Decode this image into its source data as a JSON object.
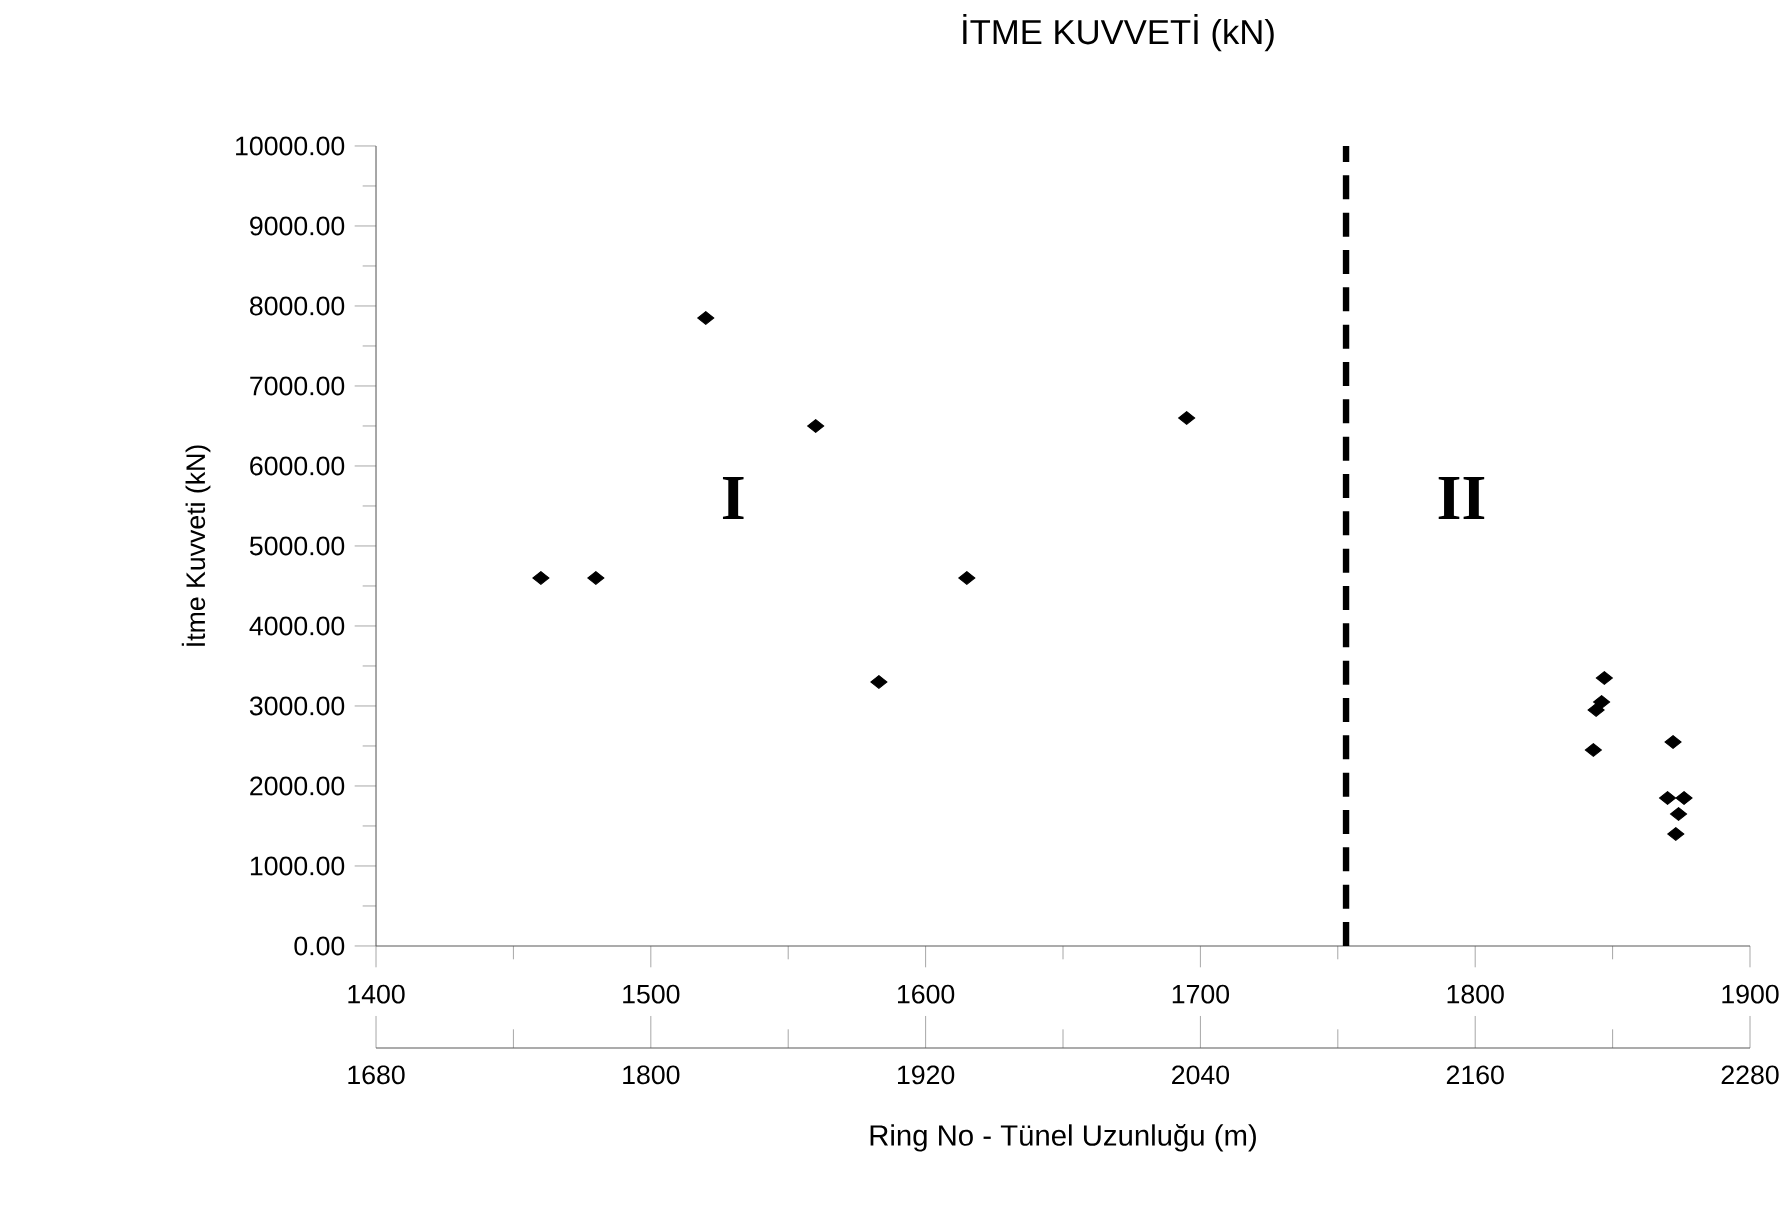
{
  "chart_data": {
    "type": "scatter",
    "title": "İTME KUVVETİ (kN)",
    "xlabel": "Ring No - Tünel Uzunluğu (m)",
    "ylabel": "İtme Kuvveti (kN)",
    "annotations": [
      "I",
      "II"
    ],
    "x": [
      1460,
      1480,
      1520,
      1560,
      1583,
      1615,
      1695,
      1847,
      1846,
      1844,
      1843,
      1872,
      1870,
      1876,
      1874,
      1873
    ],
    "values": [
      4600,
      4600,
      7850,
      6500,
      3300,
      4600,
      6600,
      3350,
      3050,
      2950,
      2450,
      2550,
      1850,
      1850,
      1650,
      1400
    ],
    "color": "#000000",
    "marker": "diamond",
    "xlim": [
      1400,
      1900
    ],
    "xticks": [
      1400,
      1500,
      1600,
      1700,
      1800,
      1900
    ],
    "x2lim": [
      1680,
      2280
    ],
    "x2ticks": [
      1680,
      1800,
      1920,
      2040,
      2160,
      2280
    ],
    "ylim": [
      0,
      10000
    ],
    "yticks": [
      {
        "value": 0,
        "label": "0.00"
      },
      {
        "value": 1000,
        "label": "1000.00"
      },
      {
        "value": 2000,
        "label": "2000.00"
      },
      {
        "value": 3000,
        "label": "3000.00"
      },
      {
        "value": 4000,
        "label": "4000.00"
      },
      {
        "value": 5000,
        "label": "5000.00"
      },
      {
        "value": 6000,
        "label": "6000.00"
      },
      {
        "value": 7000,
        "label": "7000.00"
      },
      {
        "value": 8000,
        "label": "8000.00"
      },
      {
        "value": 9000,
        "label": "9000.00"
      },
      {
        "value": 10000,
        "label": "10000.00"
      }
    ],
    "ref_lines": [
      {
        "axis": "x",
        "value": 1753,
        "color": "#000000",
        "line_style": "dashed"
      }
    ],
    "grid": false,
    "legend": false
  }
}
